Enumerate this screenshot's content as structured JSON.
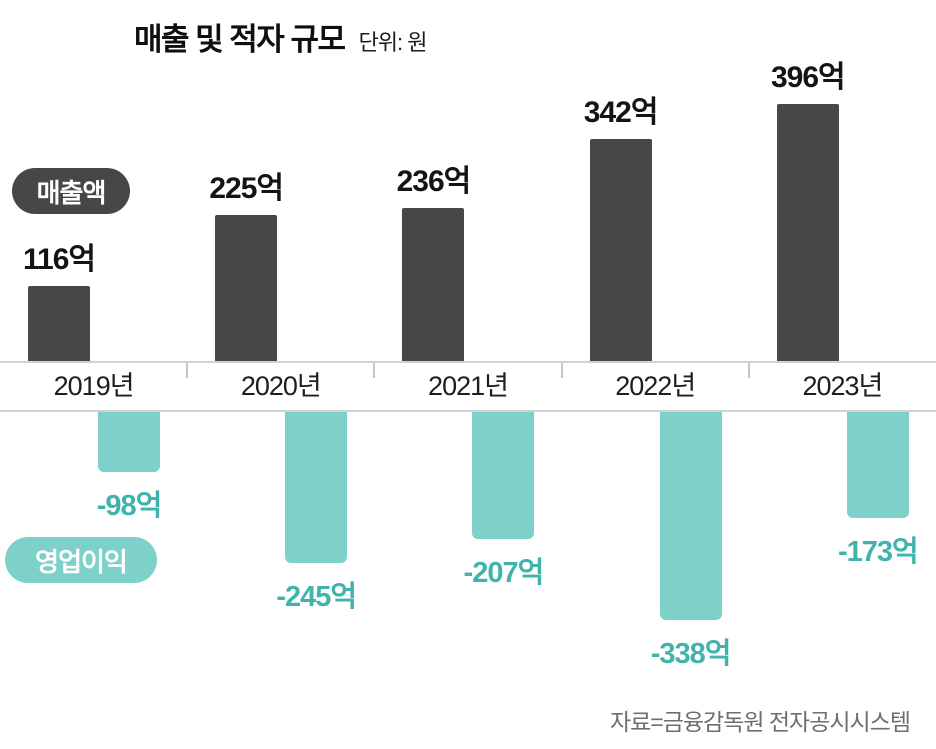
{
  "title": "매출 및 적자 규모",
  "unit": "단위: 원",
  "legend": {
    "revenue": "매출액",
    "profit": "영업이익"
  },
  "source": "자료=금융감독원 전자공시시스템",
  "colors": {
    "revenue": "#474747",
    "profit": "#7ed0ca",
    "profit_text": "#3fb3ac"
  },
  "chart_data": {
    "type": "bar",
    "title": "매출 및 적자 규모",
    "unit": "억 원",
    "categories": [
      "2019년",
      "2020년",
      "2021년",
      "2022년",
      "2023년"
    ],
    "series": [
      {
        "name": "매출액",
        "values": [
          116,
          225,
          236,
          342,
          396
        ],
        "labels": [
          "116억",
          "225억",
          "236억",
          "342억",
          "396억"
        ]
      },
      {
        "name": "영업이익",
        "values": [
          -98,
          -245,
          -207,
          -338,
          -173
        ],
        "labels": [
          "-98억",
          "-245억",
          "-207억",
          "-338억",
          "-173억"
        ]
      }
    ],
    "layout": {
      "revenue_bars": "up from baseline",
      "profit_bars": "down from baseline",
      "grid": false,
      "legend_position": "left pills"
    }
  }
}
